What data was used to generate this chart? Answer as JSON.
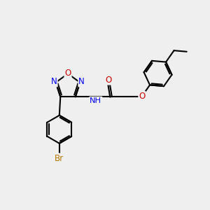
{
  "bg_color": "#efefef",
  "atom_colors": {
    "C": "#000000",
    "N": "#0000ee",
    "O": "#cc0000",
    "Br": "#b87800",
    "H": "#404040"
  },
  "bond_color": "#000000",
  "bond_lw": 1.5
}
